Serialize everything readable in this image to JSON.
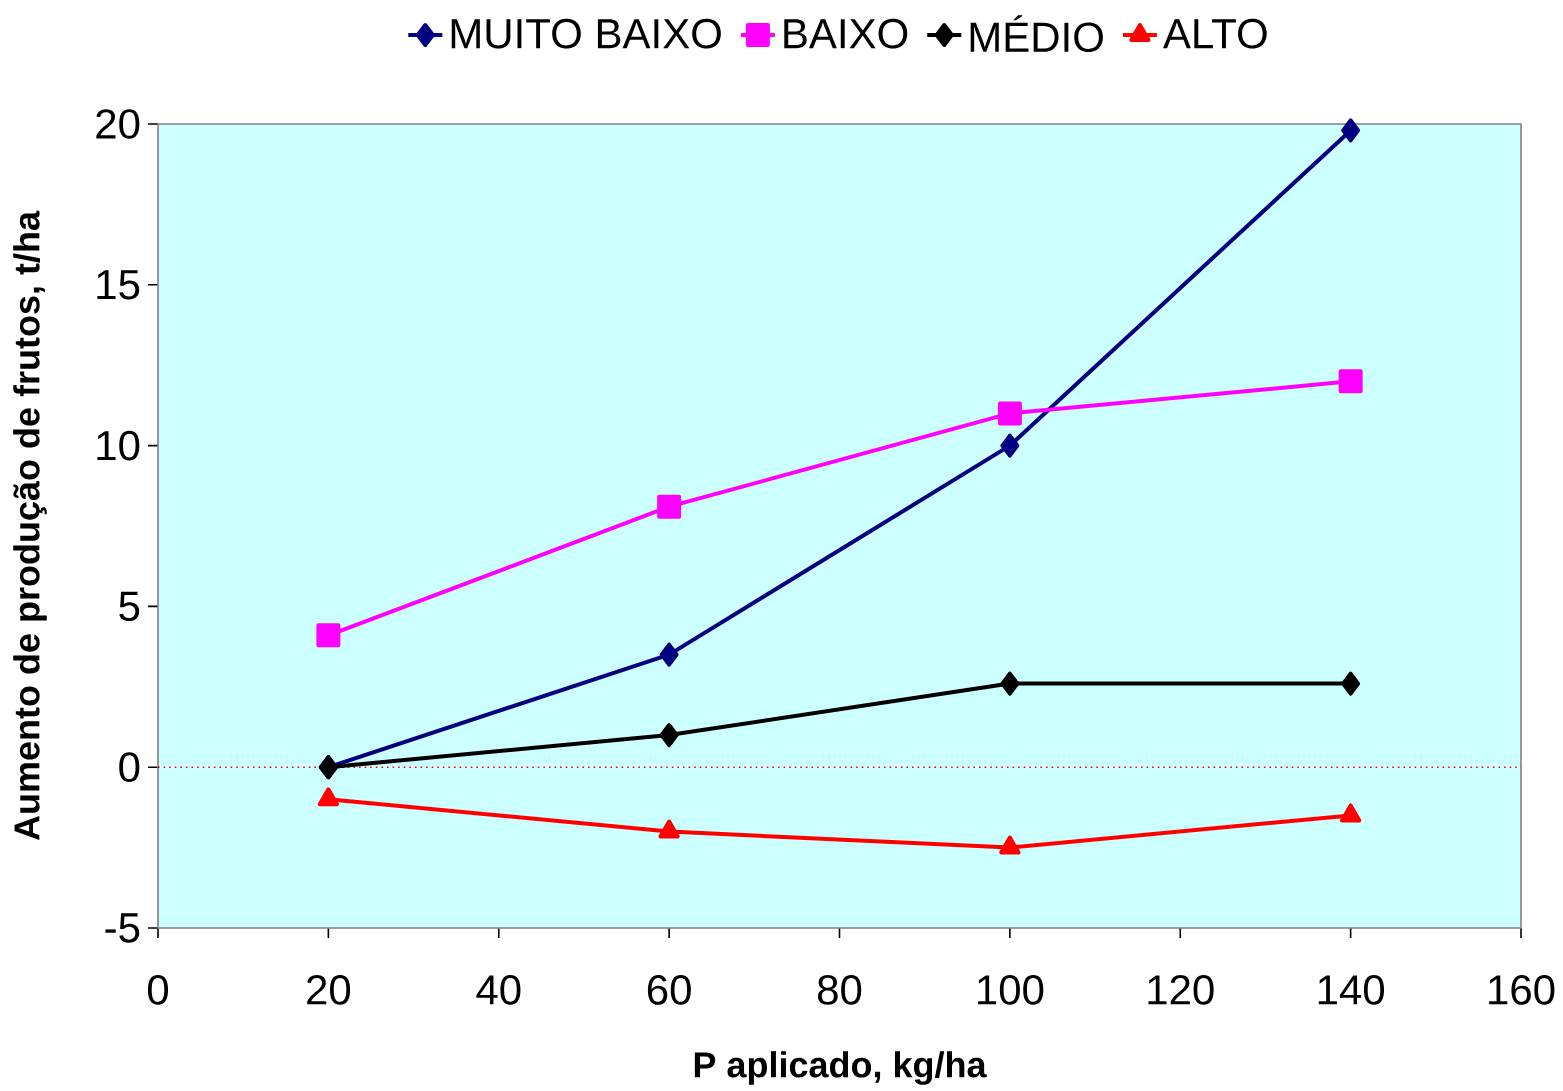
{
  "chart_data": {
    "type": "line",
    "xlabel": "P aplicado, kg/ha",
    "ylabel": "Aumento de produção de frutos, t/ha",
    "x": [
      20,
      60,
      100,
      140
    ],
    "series": [
      {
        "name": "MUITO BAIXO",
        "color": "#000080",
        "marker": "diamond",
        "values": [
          0,
          3.5,
          10,
          19.8
        ]
      },
      {
        "name": "BAIXO",
        "color": "#ff00ff",
        "marker": "square",
        "values": [
          4.1,
          8.1,
          11,
          12
        ]
      },
      {
        "name": "MÉDIO",
        "color": "#000000",
        "marker": "diamond",
        "values": [
          0,
          1,
          2.6,
          2.6
        ]
      },
      {
        "name": "ALTO",
        "color": "#ff0000",
        "marker": "triangle",
        "values": [
          -1,
          -2,
          -2.5,
          -1.5
        ]
      }
    ],
    "xlim": [
      0,
      160
    ],
    "xticks": [
      0,
      20,
      40,
      60,
      80,
      100,
      120,
      140,
      160
    ],
    "ylim": [
      -5,
      20
    ],
    "yticks": [
      -5,
      0,
      5,
      10,
      15,
      20
    ],
    "ref_lines": [
      {
        "axis": "y",
        "value": 0,
        "color": "#ff0000",
        "line_style": "dotted"
      }
    ],
    "grid": false,
    "legend": "top",
    "line_style": "solid"
  }
}
